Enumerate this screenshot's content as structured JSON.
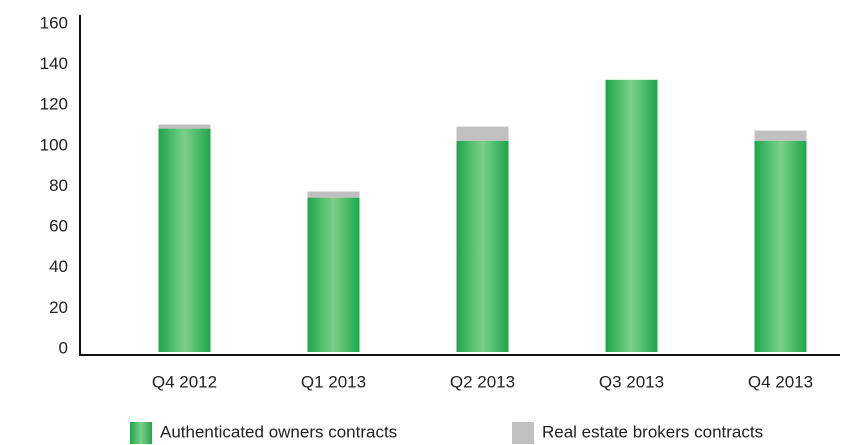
{
  "chart_data": {
    "type": "stacked_bar",
    "categories": [
      "Q4 2012",
      "Q1 2013",
      "Q2 2013",
      "Q3 2013",
      "Q4 2013"
    ],
    "series": [
      {
        "name": "Authenticated owners contracts",
        "color": "#1ea64a",
        "values": [
          110,
          76,
          104,
          134,
          104
        ]
      },
      {
        "name": "Real estate brokers contracts",
        "color": "#c0c0c0",
        "values": [
          2,
          3,
          7,
          0,
          5
        ]
      }
    ],
    "ylim": [
      0,
      160
    ],
    "yticks": [
      0,
      20,
      40,
      60,
      80,
      100,
      120,
      140,
      160
    ],
    "grid": false
  }
}
